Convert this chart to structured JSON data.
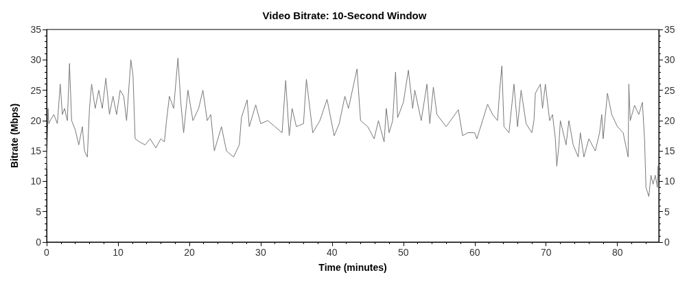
{
  "chart_data": {
    "type": "line",
    "title": "Video Bitrate: 10-Second Window",
    "xlabel": "Time (minutes)",
    "ylabel": "Bitrate (Mbps)",
    "x": [
      0,
      0.2,
      0.3,
      0.5,
      1,
      1.5,
      1.9,
      2.2,
      2.5,
      2.9,
      3.2,
      3.5,
      4,
      4.5,
      5,
      5.3,
      5.7,
      6,
      6.3,
      6.8,
      7.3,
      7.8,
      8.3,
      8.8,
      9.3,
      9.8,
      10.3,
      10.8,
      11.2,
      11.8,
      12.1,
      12.4,
      13,
      13.8,
      14.5,
      15.3,
      16,
      16.5,
      16.8,
      17.2,
      17.8,
      18.4,
      18.8,
      19.2,
      19.8,
      20.5,
      21.3,
      21.9,
      22.5,
      23,
      23.5,
      24.5,
      25.2,
      26.2,
      27,
      27.3,
      28.1,
      28.4,
      29.3,
      30,
      31,
      32,
      33,
      33.5,
      34,
      34.4,
      35,
      36,
      36.4,
      37.3,
      38.3,
      39.3,
      40.3,
      41,
      41.8,
      42.3,
      43.5,
      44,
      45,
      45.9,
      46.5,
      47.3,
      47.6,
      48,
      48.5,
      48.9,
      49.2,
      50,
      50.7,
      51.3,
      51.6,
      52.5,
      53.3,
      53.7,
      54.2,
      54.7,
      56,
      57.7,
      58.3,
      59,
      60,
      60.3,
      61.1,
      61.8,
      62.5,
      63.2,
      63.5,
      63.8,
      64.1,
      64.8,
      65.5,
      66,
      66.5,
      67.2,
      68,
      68.3,
      68.5,
      69.2,
      69.5,
      69.9,
      70.5,
      70.9,
      71.3,
      71.5,
      71.8,
      72,
      72.8,
      73.2,
      73.8,
      74.5,
      74.8,
      75.3,
      76,
      76.9,
      77.5,
      77.8,
      78,
      78.6,
      79.2,
      80,
      80.8,
      81.5,
      81.6,
      81.8,
      82.4,
      83,
      83.5,
      83.8,
      84,
      84.4,
      84.7,
      85,
      85.3,
      85.6,
      85.7,
      85.8
    ],
    "values": [
      12,
      22,
      19.5,
      20,
      21,
      19.5,
      26,
      21,
      22,
      20,
      29.4,
      20,
      18.5,
      16,
      19,
      15,
      14,
      22,
      26,
      22,
      25,
      22,
      27,
      21,
      24,
      21,
      25,
      24,
      20,
      30,
      27.5,
      17,
      16.5,
      16,
      17,
      15.5,
      17,
      16.5,
      20,
      24,
      22,
      30.3,
      23,
      18,
      25,
      20,
      22,
      25,
      20,
      21,
      15,
      19,
      15,
      14,
      16,
      20.5,
      23.4,
      19,
      22.6,
      19.5,
      20,
      19,
      18,
      26.6,
      17.5,
      22,
      19,
      19.5,
      26.8,
      18,
      20,
      23.5,
      17.5,
      19.5,
      24,
      22,
      28.5,
      20,
      19,
      17,
      20,
      16.5,
      22,
      18,
      20,
      28,
      20.5,
      23,
      28.3,
      22,
      25,
      20,
      26,
      19.5,
      25.5,
      21,
      19,
      21.8,
      17.5,
      18,
      18,
      17,
      20,
      22.7,
      21,
      20,
      25,
      29,
      19,
      18,
      26,
      19,
      25,
      19.5,
      18,
      20,
      24.5,
      26,
      22,
      26,
      20,
      21,
      17,
      12.5,
      16,
      20,
      16,
      20,
      16,
      14,
      18,
      14,
      17,
      15,
      18,
      21,
      17,
      24.5,
      21,
      19,
      18,
      14,
      26,
      20,
      22.5,
      21,
      23,
      17,
      9,
      7.5,
      11,
      9.5,
      11,
      9,
      12.5,
      8
    ],
    "color": "#777777",
    "xlim": [
      0,
      85.8
    ],
    "xticks": [
      0,
      10,
      20,
      30,
      40,
      50,
      60,
      70,
      80
    ],
    "ylim": [
      0,
      35
    ],
    "yticks": [
      0,
      5,
      10,
      15,
      20,
      25,
      30,
      35
    ],
    "y2lim": [
      0,
      35
    ],
    "y2ticks": [
      0,
      5,
      10,
      15,
      20,
      25,
      30,
      35
    ],
    "marker": "none",
    "line_style": "solid",
    "grid": false
  }
}
